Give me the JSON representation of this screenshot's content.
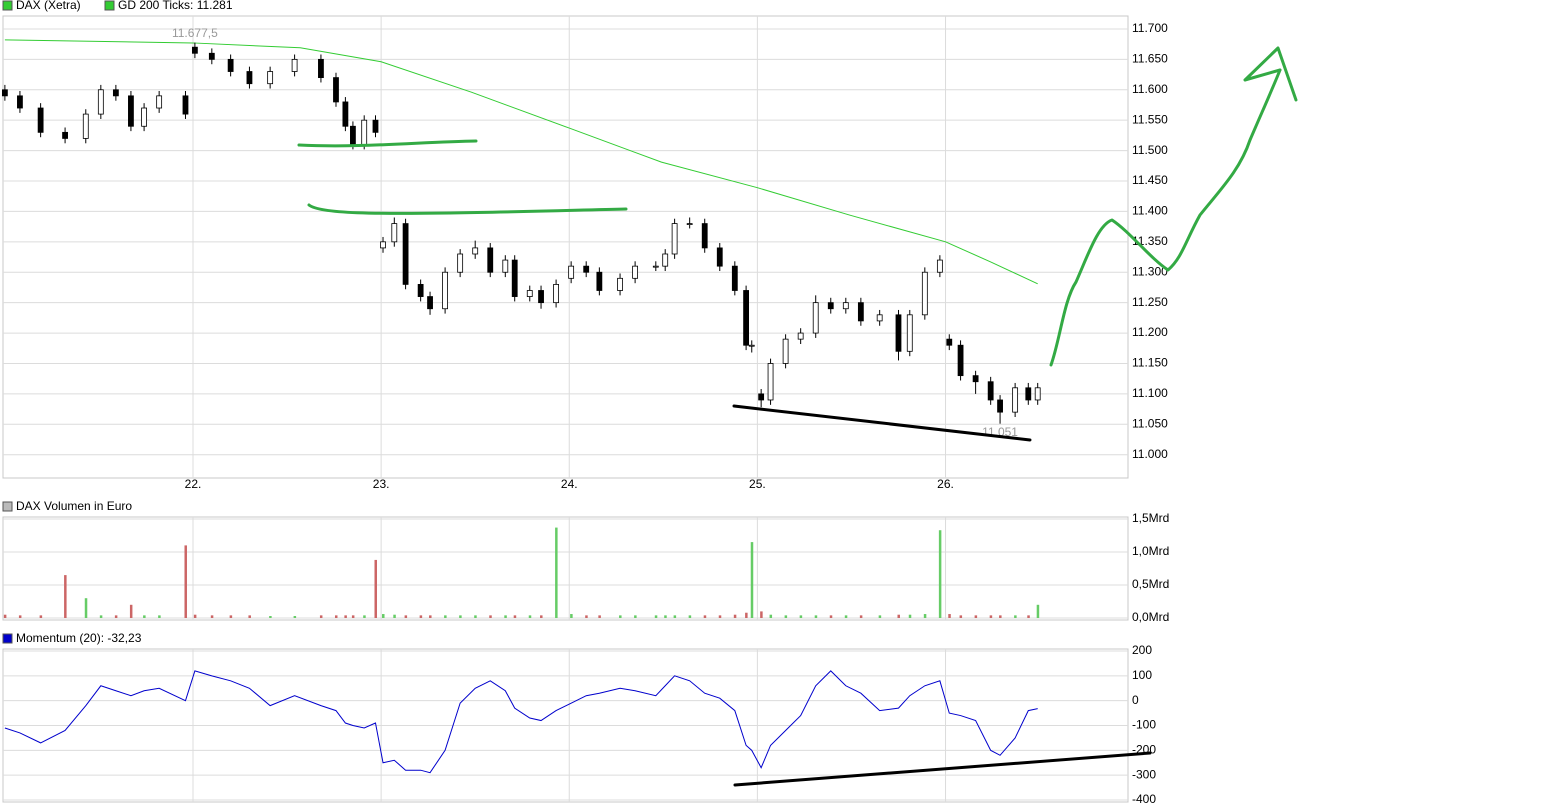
{
  "chart_data": [
    {
      "type": "candlestick",
      "name": "DAX (Xetra)",
      "legend_color": "#33cc33",
      "up_color": "#ffffff",
      "down_color": "#000000",
      "wick_color": "#000000",
      "x": [
        21.0,
        21.08,
        21.19,
        21.32,
        21.43,
        21.51,
        21.59,
        21.67,
        21.74,
        21.82,
        21.96,
        22.01,
        22.1,
        22.2,
        22.3,
        22.41,
        22.54,
        22.68,
        22.76,
        22.81,
        22.85,
        22.91,
        22.97,
        23.01,
        23.07,
        23.13,
        23.21,
        23.26,
        23.34,
        23.42,
        23.5,
        23.58,
        23.66,
        23.71,
        23.79,
        23.85,
        23.93,
        24.01,
        24.09,
        24.16,
        24.27,
        24.35,
        24.46,
        24.51,
        24.56,
        24.64,
        24.72,
        24.8,
        24.88,
        24.94,
        24.97,
        25.02,
        25.07,
        25.15,
        25.23,
        25.31,
        25.39,
        25.47,
        25.55,
        25.65,
        25.75,
        25.81,
        25.89,
        25.97,
        26.02,
        26.08,
        26.16,
        26.24,
        26.29,
        26.37,
        26.44,
        26.49
      ],
      "open": [
        11600,
        11590,
        11570,
        11530,
        11520,
        11560,
        11600,
        11590,
        11540,
        11570,
        11590,
        11670,
        11660,
        11650,
        11630,
        11610,
        11630,
        11650,
        11620,
        11580,
        11540,
        11510,
        11550,
        11340,
        11350,
        11380,
        11280,
        11260,
        11240,
        11300,
        11330,
        11340,
        11300,
        11320,
        11260,
        11270,
        11250,
        11290,
        11310,
        11300,
        11270,
        11290,
        11310,
        11310,
        11330,
        11380,
        11380,
        11340,
        11310,
        11270,
        11180,
        11100,
        11090,
        11150,
        11190,
        11200,
        11250,
        11240,
        11250,
        11220,
        11230,
        11170,
        11230,
        11300,
        11190,
        11180,
        11130,
        11120,
        11090,
        11070,
        11110,
        11090
      ],
      "high": [
        11608,
        11598,
        11578,
        11538,
        11568,
        11608,
        11608,
        11598,
        11578,
        11598,
        11598,
        11677.5,
        11668,
        11658,
        11638,
        11638,
        11658,
        11658,
        11628,
        11588,
        11548,
        11558,
        11558,
        11358,
        11390,
        11388,
        11288,
        11268,
        11308,
        11338,
        11352,
        11348,
        11328,
        11328,
        11278,
        11278,
        11288,
        11318,
        11318,
        11308,
        11298,
        11318,
        11318,
        11338,
        11388,
        11390,
        11388,
        11348,
        11318,
        11278,
        11188,
        11108,
        11158,
        11198,
        11208,
        11262,
        11258,
        11258,
        11258,
        11238,
        11238,
        11238,
        11308,
        11328,
        11198,
        11188,
        11138,
        11128,
        11098,
        11118,
        11118,
        11118
      ],
      "low": [
        11582,
        11562,
        11522,
        11512,
        11512,
        11552,
        11582,
        11532,
        11532,
        11562,
        11552,
        11652,
        11642,
        11622,
        11602,
        11602,
        11622,
        11612,
        11572,
        11532,
        11502,
        11502,
        11522,
        11332,
        11342,
        11272,
        11252,
        11230,
        11232,
        11292,
        11322,
        11292,
        11292,
        11252,
        11252,
        11240,
        11242,
        11282,
        11292,
        11262,
        11262,
        11282,
        11302,
        11302,
        11322,
        11372,
        11332,
        11302,
        11262,
        11172,
        11168,
        11078,
        11082,
        11142,
        11182,
        11192,
        11232,
        11232,
        11212,
        11212,
        11155,
        11162,
        11222,
        11292,
        11172,
        11122,
        11100,
        11082,
        11051,
        11062,
        11082,
        11082
      ],
      "close": [
        11590,
        11570,
        11530,
        11520,
        11560,
        11600,
        11590,
        11540,
        11570,
        11590,
        11560,
        11660,
        11650,
        11630,
        11610,
        11630,
        11650,
        11620,
        11580,
        11540,
        11510,
        11550,
        11530,
        11350,
        11380,
        11280,
        11260,
        11240,
        11300,
        11330,
        11340,
        11300,
        11320,
        11260,
        11270,
        11250,
        11280,
        11310,
        11300,
        11270,
        11290,
        11310,
        11310,
        11330,
        11380,
        11380,
        11340,
        11310,
        11270,
        11180,
        11180,
        11090,
        11150,
        11190,
        11200,
        11250,
        11240,
        11250,
        11220,
        11230,
        11170,
        11230,
        11300,
        11320,
        11180,
        11130,
        11120,
        11090,
        11070,
        11110,
        11090,
        11110
      ],
      "overlay": {
        "name": "GD 200 Ticks: 11.281",
        "color": "#33cc33",
        "x": [
          21.0,
          22.0,
          22.57,
          23.0,
          23.48,
          24.0,
          24.49,
          25.0,
          25.49,
          26.0,
          26.24,
          26.49
        ],
        "values": [
          11682,
          11677,
          11669,
          11646,
          11596,
          11537,
          11481,
          11439,
          11394,
          11350,
          11317,
          11281
        ]
      },
      "annotations": [
        {
          "x": 22.01,
          "y": 11677.5,
          "text": "11.677,5"
        },
        {
          "x": 26.29,
          "y": 11051,
          "text": "11.051"
        }
      ],
      "xlim": [
        20.99,
        26.97
      ],
      "xticks": [
        {
          "value": 22,
          "label": "22."
        },
        {
          "value": 23,
          "label": "23."
        },
        {
          "value": 24,
          "label": "24."
        },
        {
          "value": 25,
          "label": "25."
        },
        {
          "value": 26,
          "label": "26."
        }
      ],
      "ylim": [
        10965,
        11718
      ],
      "yticks": [
        {
          "value": 11000,
          "label": "11.000"
        },
        {
          "value": 11050,
          "label": "11.050"
        },
        {
          "value": 11100,
          "label": "11.100"
        },
        {
          "value": 11150,
          "label": "11.150"
        },
        {
          "value": 11200,
          "label": "11.200"
        },
        {
          "value": 11250,
          "label": "11.250"
        },
        {
          "value": 11300,
          "label": "11.300"
        },
        {
          "value": 11350,
          "label": "11.350"
        },
        {
          "value": 11400,
          "label": "11.400"
        },
        {
          "value": 11450,
          "label": "11.450"
        },
        {
          "value": 11500,
          "label": "11.500"
        },
        {
          "value": 11550,
          "label": "11.550"
        },
        {
          "value": 11600,
          "label": "11.600"
        },
        {
          "value": 11650,
          "label": "11.650"
        },
        {
          "value": 11700,
          "label": "11.700"
        }
      ],
      "grid": true
    },
    {
      "type": "bar",
      "name": "DAX Volumen in Euro",
      "legend_color": "#bbbbbb",
      "up_color": "#66cc66",
      "down_color": "#cc6666",
      "values": [
        0.05,
        0.04,
        0.04,
        0.65,
        0.3,
        0.04,
        0.04,
        0.2,
        0.04,
        0.04,
        1.1,
        0.05,
        0.04,
        0.04,
        0.04,
        0.03,
        0.03,
        0.04,
        0.04,
        0.04,
        0.04,
        0.04,
        0.88,
        0.06,
        0.05,
        0.04,
        0.04,
        0.04,
        0.04,
        0.04,
        0.04,
        0.04,
        0.04,
        0.04,
        0.04,
        0.04,
        1.37,
        0.06,
        0.04,
        0.04,
        0.04,
        0.04,
        0.04,
        0.04,
        0.04,
        0.04,
        0.04,
        0.04,
        0.05,
        0.08,
        1.15,
        0.1,
        0.05,
        0.04,
        0.04,
        0.04,
        0.04,
        0.04,
        0.04,
        0.04,
        0.05,
        0.05,
        0.06,
        1.33,
        0.06,
        0.04,
        0.04,
        0.04,
        0.04,
        0.04,
        0.04,
        0.2
      ],
      "ylim": [
        0,
        1.5
      ],
      "yticks": [
        {
          "value": 0,
          "label": "0,0Mrd"
        },
        {
          "value": 0.5,
          "label": "0,5Mrd"
        },
        {
          "value": 1,
          "label": "1,0Mrd"
        },
        {
          "value": 1.5,
          "label": "1,5Mrd"
        }
      ],
      "grid": true
    },
    {
      "type": "line",
      "name": "Momentum (20): -32,23",
      "color": "#0000cc",
      "values": [
        -110,
        -130,
        -170,
        -120,
        -20,
        60,
        40,
        20,
        40,
        50,
        0,
        120,
        100,
        80,
        50,
        -20,
        20,
        -20,
        -40,
        -90,
        -100,
        -110,
        -90,
        -250,
        -240,
        -280,
        -280,
        -290,
        -200,
        -10,
        50,
        80,
        40,
        -30,
        -70,
        -80,
        -40,
        -10,
        20,
        30,
        50,
        40,
        20,
        60,
        100,
        80,
        30,
        10,
        -40,
        -180,
        -200,
        -270,
        -180,
        -120,
        -60,
        60,
        120,
        60,
        30,
        -40,
        -30,
        20,
        60,
        80,
        -50,
        -60,
        -80,
        -200,
        -220,
        -150,
        -40,
        -32.23
      ],
      "ylim": [
        -400,
        200
      ],
      "yticks": [
        -400,
        -300,
        -200,
        -100,
        0,
        100,
        200
      ],
      "grid": true
    }
  ]
}
